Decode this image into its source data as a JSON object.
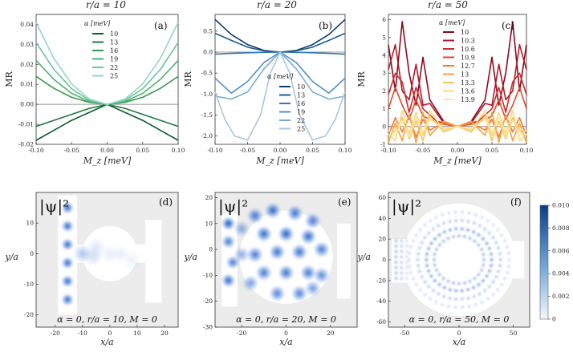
{
  "chart_data": [
    {
      "type": "line",
      "panel": "(a)",
      "title": "r/a = 10",
      "xlabel": "M_z [meV]",
      "ylabel": "MR",
      "xlim": [
        -0.1,
        0.1
      ],
      "ylim": [
        -0.02,
        0.045
      ],
      "xticks": [
        "-0.10",
        "-0.05",
        "0.00",
        "0.05",
        "0.10"
      ],
      "yticks": [
        "-0.02",
        "-0.01",
        "0.00",
        "0.01",
        "0.02",
        "0.03",
        "0.04"
      ],
      "legend_title": "α [meV]",
      "legend_position": "upper-center",
      "series": [
        {
          "name": "10",
          "color": "#0b5a2e",
          "x": [
            -0.1,
            -0.075,
            -0.05,
            -0.025,
            0,
            0.025,
            0.05,
            0.075,
            0.1
          ],
          "y": [
            -0.018,
            -0.013,
            -0.008,
            -0.004,
            0,
            -0.004,
            -0.008,
            -0.013,
            -0.018
          ]
        },
        {
          "name": "13",
          "color": "#1f7a3b",
          "x": [
            -0.1,
            -0.075,
            -0.05,
            -0.025,
            0,
            0.025,
            0.05,
            0.075,
            0.1
          ],
          "y": [
            -0.011,
            -0.008,
            -0.005,
            -0.002,
            0,
            -0.002,
            -0.005,
            -0.008,
            -0.011
          ]
        },
        {
          "name": "16",
          "color": "#3a9a4e",
          "x": [
            -0.1,
            -0.075,
            -0.05,
            -0.025,
            0,
            0.025,
            0.05,
            0.075,
            0.1
          ],
          "y": [
            0.014,
            0.008,
            0.0035,
            0.001,
            0,
            0.001,
            0.0035,
            0.008,
            0.014
          ]
        },
        {
          "name": "19",
          "color": "#4fb074",
          "x": [
            -0.1,
            -0.075,
            -0.05,
            -0.025,
            0,
            0.025,
            0.05,
            0.075,
            0.1
          ],
          "y": [
            0.022,
            0.0125,
            0.0055,
            0.0014,
            0,
            0.0014,
            0.0055,
            0.0125,
            0.022
          ]
        },
        {
          "name": "22",
          "color": "#6cc49a",
          "x": [
            -0.1,
            -0.075,
            -0.05,
            -0.025,
            0,
            0.025,
            0.05,
            0.075,
            0.1
          ],
          "y": [
            0.031,
            0.0175,
            0.0078,
            0.002,
            0,
            0.002,
            0.0078,
            0.0175,
            0.031
          ]
        },
        {
          "name": "25",
          "color": "#8fd8c0",
          "x": [
            -0.1,
            -0.075,
            -0.05,
            -0.025,
            0,
            0.025,
            0.05,
            0.075,
            0.1
          ],
          "y": [
            0.041,
            0.023,
            0.0102,
            0.0026,
            0,
            0.0026,
            0.0102,
            0.023,
            0.041
          ]
        }
      ]
    },
    {
      "type": "line",
      "panel": "(b)",
      "title": "r/a = 20",
      "xlabel": "M_z [meV]",
      "ylabel": "MR",
      "xlim": [
        -0.1,
        0.1
      ],
      "ylim": [
        -2.2,
        0.9
      ],
      "xticks": [
        "-0.10",
        "-0.05",
        "0.00",
        "0.05",
        "0.10"
      ],
      "yticks": [
        "-2.0",
        "-1.5",
        "-1.0",
        "-0.5",
        "0.0",
        "0.5"
      ],
      "legend_title": "α [meV]",
      "legend_position": "center-right",
      "series": [
        {
          "name": "10",
          "color": "#0b3d6b",
          "x": [
            -0.1,
            -0.075,
            -0.05,
            -0.025,
            0,
            0.025,
            0.05,
            0.075,
            0.1
          ],
          "y": [
            0.78,
            0.42,
            0.18,
            0.04,
            0,
            0.04,
            0.18,
            0.42,
            0.78
          ]
        },
        {
          "name": "13",
          "color": "#1d5e93",
          "x": [
            -0.1,
            -0.075,
            -0.05,
            -0.025,
            0,
            0.025,
            0.05,
            0.075,
            0.1
          ],
          "y": [
            0.45,
            0.28,
            0.12,
            0.03,
            0,
            0.03,
            0.12,
            0.28,
            0.45
          ]
        },
        {
          "name": "16",
          "color": "#3478b3",
          "x": [
            -0.1,
            -0.075,
            -0.05,
            -0.025,
            0,
            0.025,
            0.05,
            0.075,
            0.1
          ],
          "y": [
            -0.05,
            -0.03,
            -0.015,
            -0.005,
            0,
            -0.005,
            -0.015,
            -0.03,
            -0.05
          ]
        },
        {
          "name": "19",
          "color": "#4f90c6",
          "x": [
            -0.1,
            -0.075,
            -0.05,
            -0.025,
            0,
            0.025,
            0.05,
            0.075,
            0.1
          ],
          "y": [
            -0.62,
            -0.98,
            -0.7,
            -0.25,
            0,
            -0.25,
            -0.7,
            -0.98,
            -0.62
          ]
        },
        {
          "name": "22",
          "color": "#76abd6",
          "x": [
            -0.1,
            -0.075,
            -0.05,
            -0.025,
            0,
            0.025,
            0.05,
            0.075,
            0.1
          ],
          "y": [
            -1.05,
            -1.12,
            -0.95,
            -0.4,
            0,
            -0.4,
            -0.95,
            -1.12,
            -1.05
          ]
        },
        {
          "name": "25",
          "color": "#a9c6e4",
          "x": [
            -0.1,
            -0.085,
            -0.07,
            -0.05,
            -0.03,
            -0.015,
            0,
            0.015,
            0.03,
            0.05,
            0.07,
            0.085,
            0.1
          ],
          "y": [
            -0.95,
            -1.6,
            -2.0,
            -2.1,
            -1.5,
            -0.5,
            0,
            -0.5,
            -1.5,
            -2.1,
            -2.0,
            -1.6,
            -0.95
          ]
        }
      ]
    },
    {
      "type": "line",
      "panel": "(c)",
      "title": "r/a = 50",
      "xlabel": "M_z [meV]",
      "ylabel": "MR",
      "xlim": [
        -0.1,
        0.1
      ],
      "ylim": [
        -1.0,
        6.3
      ],
      "xticks": [
        "-0.10",
        "-0.05",
        "0.00",
        "0.05",
        "0.10"
      ],
      "yticks": [
        "-1",
        "0",
        "1",
        "2",
        "3",
        "4",
        "5",
        "6"
      ],
      "legend_title": "α [meV]",
      "legend_position": "center",
      "series": [
        {
          "name": "10",
          "color": "#8b0a1e",
          "x": [
            -0.1,
            -0.09,
            -0.08,
            -0.07,
            -0.06,
            -0.05,
            -0.04,
            -0.02,
            0,
            0.02,
            0.04,
            0.05,
            0.06,
            0.07,
            0.08,
            0.09,
            0.1
          ],
          "y": [
            4.6,
            2.0,
            5.9,
            3.0,
            1.2,
            3.9,
            1.5,
            0.3,
            0,
            0.3,
            1.5,
            3.9,
            1.2,
            3.0,
            5.9,
            2.0,
            4.6
          ]
        },
        {
          "name": "10.3",
          "color": "#b01a2a",
          "x": [
            -0.1,
            -0.09,
            -0.08,
            -0.07,
            -0.06,
            -0.05,
            -0.04,
            -0.02,
            0,
            0.02,
            0.04,
            0.05,
            0.06,
            0.07,
            0.08,
            0.09,
            0.1
          ],
          "y": [
            3.2,
            4.6,
            2.0,
            1.5,
            3.5,
            1.2,
            1.3,
            0.2,
            0,
            0.2,
            1.3,
            1.2,
            3.5,
            1.5,
            2.0,
            4.6,
            3.2
          ]
        },
        {
          "name": "10.6",
          "color": "#cc2b2b",
          "x": [
            -0.1,
            -0.09,
            -0.08,
            -0.07,
            -0.06,
            -0.05,
            -0.03,
            0,
            0.03,
            0.05,
            0.06,
            0.07,
            0.08,
            0.09,
            0.1
          ],
          "y": [
            1.8,
            3.0,
            2.5,
            0.8,
            2.2,
            1.0,
            0.3,
            0,
            0.3,
            1.0,
            2.2,
            0.8,
            2.5,
            3.0,
            1.8
          ]
        },
        {
          "name": "10.9",
          "color": "#e0492e",
          "x": [
            -0.1,
            -0.09,
            -0.08,
            -0.07,
            -0.06,
            -0.05,
            -0.03,
            0,
            0.03,
            0.05,
            0.06,
            0.07,
            0.08,
            0.09,
            0.1
          ],
          "y": [
            1.0,
            2.2,
            1.2,
            0.4,
            1.5,
            0.6,
            0.2,
            0,
            0.2,
            0.6,
            1.5,
            0.4,
            1.2,
            2.2,
            1.0
          ]
        },
        {
          "name": "12.7",
          "color": "#f27a37",
          "x": [
            -0.1,
            -0.09,
            -0.08,
            -0.07,
            -0.06,
            -0.05,
            -0.04,
            -0.02,
            0,
            0.02,
            0.04,
            0.05,
            0.06,
            0.07,
            0.08,
            0.09,
            0.1
          ],
          "y": [
            -0.5,
            0.5,
            -0.3,
            0.6,
            -0.6,
            0.4,
            -0.2,
            0.2,
            0,
            0.2,
            -0.2,
            0.4,
            -0.6,
            0.6,
            -0.3,
            0.5,
            -0.5
          ]
        },
        {
          "name": "13",
          "color": "#f8a340",
          "x": [
            -0.1,
            -0.09,
            -0.08,
            -0.07,
            -0.06,
            -0.05,
            -0.04,
            -0.02,
            0,
            0.02,
            0.04,
            0.05,
            0.06,
            0.07,
            0.08,
            0.09,
            0.1
          ],
          "y": [
            -0.9,
            0.2,
            -0.8,
            0.7,
            -0.9,
            0.8,
            -0.5,
            0.3,
            0,
            0.3,
            -0.5,
            0.8,
            -0.9,
            0.7,
            -0.8,
            0.2,
            -0.9
          ]
        },
        {
          "name": "13.3",
          "color": "#fbc25a",
          "x": [
            -0.1,
            -0.09,
            -0.08,
            -0.07,
            -0.06,
            -0.05,
            -0.04,
            -0.02,
            0,
            0.02,
            0.04,
            0.05,
            0.06,
            0.07,
            0.08,
            0.09,
            0.1
          ],
          "y": [
            -0.7,
            -0.2,
            0.5,
            -0.7,
            0.3,
            -0.8,
            0.6,
            -0.3,
            0,
            -0.3,
            0.6,
            -0.8,
            0.3,
            -0.7,
            0.5,
            -0.2,
            -0.7
          ]
        },
        {
          "name": "13.6",
          "color": "#fcd97a",
          "x": [
            -0.1,
            -0.09,
            -0.08,
            -0.07,
            -0.06,
            -0.05,
            -0.04,
            -0.02,
            0,
            0.02,
            0.04,
            0.05,
            0.06,
            0.07,
            0.08,
            0.09,
            0.1
          ],
          "y": [
            -0.4,
            -0.8,
            0.9,
            -0.4,
            0.8,
            -0.5,
            0.9,
            -0.2,
            0,
            -0.2,
            0.9,
            -0.5,
            0.8,
            -0.4,
            0.9,
            -0.8,
            -0.4
          ]
        },
        {
          "name": "13.9",
          "color": "#fde6a0",
          "x": [
            -0.1,
            -0.09,
            -0.08,
            -0.07,
            -0.06,
            -0.05,
            -0.04,
            -0.02,
            0,
            0.02,
            0.04,
            0.05,
            0.06,
            0.07,
            0.08,
            0.09,
            0.1
          ],
          "y": [
            -0.2,
            -0.5,
            0.3,
            -0.6,
            0.5,
            -0.3,
            0.4,
            -0.1,
            0,
            -0.1,
            0.4,
            -0.3,
            0.5,
            -0.6,
            0.3,
            -0.5,
            -0.2
          ]
        }
      ]
    },
    {
      "type": "heatmap",
      "panel": "(d)",
      "title": "|ψ|²",
      "annotation": "α = 0, r/a = 10, M = 0",
      "xlabel": "x/a",
      "ylabel": "y/a",
      "xlim": [
        -27,
        25
      ],
      "ylim": [
        -24,
        20
      ],
      "xticks": [
        "-20",
        "-10",
        "0",
        "10",
        "20"
      ],
      "yticks": [
        "-20",
        "-10",
        "0",
        "10"
      ],
      "blobs": [
        [
          -15.5,
          -15,
          1.1,
          0.9
        ],
        [
          -15.5,
          -9,
          1.1,
          0.9
        ],
        [
          -15.5,
          -3,
          1.1,
          0.9
        ],
        [
          -15.5,
          3,
          1.1,
          0.9
        ],
        [
          -15.5,
          9,
          1.1,
          0.9
        ],
        [
          -15.5,
          15,
          1.1,
          0.9
        ],
        [
          -10,
          0,
          2,
          0.35
        ],
        [
          -6,
          -1,
          2,
          0.2
        ],
        [
          -5,
          2,
          2,
          0.15
        ],
        [
          0,
          0,
          2,
          0.1
        ],
        [
          4,
          0,
          2,
          0.1
        ],
        [
          8,
          -2,
          2,
          0.08
        ]
      ]
    },
    {
      "type": "heatmap",
      "panel": "(e)",
      "title": "|ψ|²",
      "annotation": "α = 0, r/a = 20, M = 0",
      "xlabel": "x/a",
      "ylabel": "y/a",
      "xlim": [
        -32,
        32
      ],
      "ylim": [
        -30,
        22
      ],
      "xticks": [
        "-20",
        "0",
        "20"
      ],
      "yticks": [
        "-30",
        "-20",
        "-10",
        "0",
        "10",
        "20"
      ],
      "blobs": [
        [
          -26,
          10,
          1.6,
          1
        ],
        [
          -26,
          3,
          1.6,
          0.8
        ],
        [
          -24,
          -5,
          1.6,
          0.8
        ],
        [
          -26,
          -12,
          1.6,
          0.9
        ],
        [
          -20,
          8,
          2,
          0.5
        ],
        [
          -14,
          13,
          2,
          0.8
        ],
        [
          -6,
          15,
          2,
          0.9
        ],
        [
          4,
          14,
          2,
          0.85
        ],
        [
          12,
          11,
          2,
          0.8
        ],
        [
          -10,
          6,
          2,
          0.9
        ],
        [
          0,
          6,
          2,
          0.95
        ],
        [
          10,
          5,
          2,
          0.9
        ],
        [
          -14,
          -2,
          2,
          0.8
        ],
        [
          -4,
          -1,
          2,
          0.85
        ],
        [
          6,
          -1,
          2,
          0.85
        ],
        [
          16,
          0,
          2,
          0.8
        ],
        [
          -10,
          -9,
          2,
          0.8
        ],
        [
          0,
          -9,
          2,
          0.85
        ],
        [
          10,
          -9,
          2,
          0.8
        ],
        [
          -4,
          -17,
          2,
          0.75
        ],
        [
          6,
          -17,
          2,
          0.75
        ],
        [
          16,
          -10,
          2,
          0.7
        ],
        [
          -16,
          -13,
          2,
          0.6
        ],
        [
          12,
          -15,
          2,
          0.6
        ],
        [
          -20,
          -2,
          2,
          0.5
        ]
      ]
    },
    {
      "type": "heatmap",
      "panel": "(f)",
      "title": "|ψ|²",
      "annotation": "α = 0, r/a = 50, M = 0",
      "xlabel": "x/a",
      "ylabel": "y/a",
      "xlim": [
        -65,
        65
      ],
      "ylim": [
        -65,
        65
      ],
      "xticks": [
        "-50",
        "0",
        "50"
      ],
      "yticks": [
        "-60",
        "-40",
        "-20",
        "0",
        "20",
        "40",
        "60"
      ],
      "colorbar_ticks": [
        "0",
        "0.002",
        "0.004",
        "0.006",
        "0.008",
        "0.010"
      ],
      "colorbar_range": [
        0,
        0.01
      ]
    }
  ]
}
